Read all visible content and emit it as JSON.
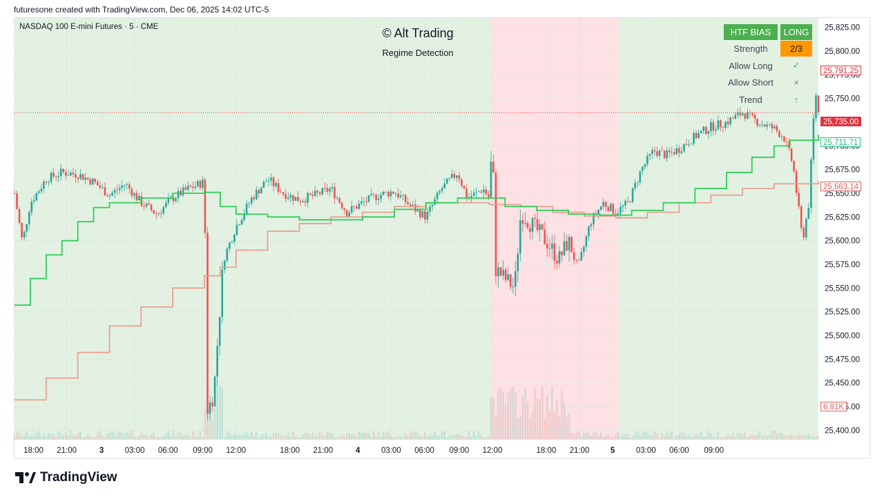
{
  "header": {
    "attribution": "futuresone created with TradingView.com, Dec 06, 2025 14:02 UTC-5"
  },
  "symbol_line": "NASDAQ 100 E-mini Futures · 5 · CME",
  "indicator": {
    "title": "© Alt Trading",
    "subtitle": "Regime Detection"
  },
  "panel": {
    "htf_bias_label": "HTF BIAS",
    "htf_bias_value": "LONG",
    "strength_label": "Strength",
    "strength_value": "2/3",
    "allow_long_label": "Allow Long",
    "allow_long_mark": "✓",
    "allow_short_label": "Allow Short",
    "allow_short_mark": "×",
    "trend_label": "Trend",
    "trend_mark": "↑"
  },
  "price_tags": {
    "high": "25,791.25",
    "last": "25,735.00",
    "green_line": "25,711.71",
    "salmon_line": "25,663.14",
    "volume": "6.81K"
  },
  "colors": {
    "bull_regime_bg": "#e3f1e3",
    "bear_regime_bg": "#fde1e4",
    "up_candle": "#26a69a",
    "down_candle": "#ef5350",
    "fast_line": "#2ecc55",
    "slow_line": "#e8a090",
    "last_price": "#e0323c"
  },
  "chart_data": {
    "type": "candlestick",
    "instrument": "NASDAQ 100 E-mini Futures",
    "interval": "5",
    "exchange": "CME",
    "y_ticks": [
      "25,825.00",
      "25,800.00",
      "25,775.00",
      "25,750.00",
      "25,725.00",
      "25,700.00",
      "25,675.00",
      "25,650.00",
      "25,625.00",
      "25,600.00",
      "25,575.00",
      "25,550.00",
      "25,525.00",
      "25,500.00",
      "25,475.00",
      "25,450.00",
      "25,425.00",
      "25,400.00"
    ],
    "x_ticks": [
      "18:00",
      "21:00",
      "3",
      "03:00",
      "06:00",
      "09:00",
      "12:00",
      "18:00",
      "21:00",
      "4",
      "03:00",
      "06:00",
      "09:00",
      "12:00",
      "18:00",
      "21:00",
      "5",
      "03:00",
      "06:00",
      "09:00"
    ],
    "ylim": [
      25390,
      25835
    ],
    "last_price": 25735.0,
    "regimes": [
      {
        "regime": "bull",
        "from": "Dec 2 15:00",
        "to": "Dec 4 09:40"
      },
      {
        "regime": "bear",
        "from": "Dec 4 09:40",
        "to": "Dec 4 21:00"
      },
      {
        "regime": "bull",
        "from": "Dec 4 21:00",
        "to": "Dec 5 10:00"
      }
    ],
    "close_path": [
      {
        "t": 0,
        "v": 25650
      },
      {
        "t": 0.25,
        "v": 25598
      },
      {
        "t": 0.5,
        "v": 25640
      },
      {
        "t": 1,
        "v": 25665
      },
      {
        "t": 1.5,
        "v": 25672
      },
      {
        "t": 2,
        "v": 25670
      },
      {
        "t": 2.5,
        "v": 25662
      },
      {
        "t": 3,
        "v": 25648
      },
      {
        "t": 3.5,
        "v": 25660
      },
      {
        "t": 4,
        "v": 25640
      },
      {
        "t": 4.5,
        "v": 25628
      },
      {
        "t": 5,
        "v": 25645
      },
      {
        "t": 5.5,
        "v": 25655
      },
      {
        "t": 6,
        "v": 25662
      },
      {
        "t": 6.1,
        "v": 25420
      },
      {
        "t": 6.3,
        "v": 25440
      },
      {
        "t": 6.6,
        "v": 25580
      },
      {
        "t": 7,
        "v": 25615
      },
      {
        "t": 7.5,
        "v": 25645
      },
      {
        "t": 8,
        "v": 25665
      },
      {
        "t": 8.5,
        "v": 25650
      },
      {
        "t": 9,
        "v": 25643
      },
      {
        "t": 9.5,
        "v": 25648
      },
      {
        "t": 10,
        "v": 25655
      },
      {
        "t": 10.5,
        "v": 25630
      },
      {
        "t": 11,
        "v": 25640
      },
      {
        "t": 11.5,
        "v": 25648
      },
      {
        "t": 12,
        "v": 25652
      },
      {
        "t": 12.5,
        "v": 25637
      },
      {
        "t": 13,
        "v": 25625
      },
      {
        "t": 13.5,
        "v": 25655
      },
      {
        "t": 14,
        "v": 25672
      },
      {
        "t": 14.3,
        "v": 25645
      },
      {
        "t": 14.6,
        "v": 25650
      },
      {
        "t": 14.8,
        "v": 25655
      },
      {
        "t": 15,
        "v": 25645
      },
      {
        "t": 15.1,
        "v": 25710
      },
      {
        "t": 15.2,
        "v": 25570
      },
      {
        "t": 15.5,
        "v": 25560
      },
      {
        "t": 15.8,
        "v": 25550
      },
      {
        "t": 16,
        "v": 25630
      },
      {
        "t": 16.4,
        "v": 25615
      },
      {
        "t": 16.8,
        "v": 25600
      },
      {
        "t": 17.2,
        "v": 25580
      },
      {
        "t": 17.5,
        "v": 25600
      },
      {
        "t": 17.8,
        "v": 25570
      },
      {
        "t": 18.2,
        "v": 25620
      },
      {
        "t": 18.6,
        "v": 25640
      },
      {
        "t": 19,
        "v": 25630
      },
      {
        "t": 19.4,
        "v": 25640
      },
      {
        "t": 19.8,
        "v": 25675
      },
      {
        "t": 20.2,
        "v": 25695
      },
      {
        "t": 20.6,
        "v": 25690
      },
      {
        "t": 21,
        "v": 25697
      },
      {
        "t": 21.5,
        "v": 25710
      },
      {
        "t": 22,
        "v": 25720
      },
      {
        "t": 22.5,
        "v": 25725
      },
      {
        "t": 23,
        "v": 25735
      },
      {
        "t": 23.5,
        "v": 25725
      },
      {
        "t": 24,
        "v": 25718
      },
      {
        "t": 24.3,
        "v": 25710
      },
      {
        "t": 24.6,
        "v": 25680
      },
      {
        "t": 24.9,
        "v": 25600
      },
      {
        "t": 25.1,
        "v": 25640
      },
      {
        "t": 25.3,
        "v": 25760
      },
      {
        "t": 25.4,
        "v": 25735
      }
    ],
    "fast_line": [
      {
        "t": 0,
        "v": 25532
      },
      {
        "t": 0.5,
        "v": 25560
      },
      {
        "t": 1,
        "v": 25585
      },
      {
        "t": 1.5,
        "v": 25600
      },
      {
        "t": 2,
        "v": 25620
      },
      {
        "t": 2.5,
        "v": 25635
      },
      {
        "t": 3,
        "v": 25640
      },
      {
        "t": 4,
        "v": 25645
      },
      {
        "t": 5,
        "v": 25650
      },
      {
        "t": 6,
        "v": 25651
      },
      {
        "t": 6.5,
        "v": 25636
      },
      {
        "t": 7,
        "v": 25628
      },
      {
        "t": 8,
        "v": 25625
      },
      {
        "t": 9,
        "v": 25622
      },
      {
        "t": 10,
        "v": 25622
      },
      {
        "t": 11,
        "v": 25625
      },
      {
        "t": 12,
        "v": 25633
      },
      {
        "t": 13,
        "v": 25640
      },
      {
        "t": 14,
        "v": 25645
      },
      {
        "t": 15,
        "v": 25645
      },
      {
        "t": 15.5,
        "v": 25636
      },
      {
        "t": 16.5,
        "v": 25632
      },
      {
        "t": 17.5,
        "v": 25628
      },
      {
        "t": 18.5,
        "v": 25627
      },
      {
        "t": 19.5,
        "v": 25632
      },
      {
        "t": 20.5,
        "v": 25640
      },
      {
        "t": 21.5,
        "v": 25655
      },
      {
        "t": 22.5,
        "v": 25672
      },
      {
        "t": 23.3,
        "v": 25688
      },
      {
        "t": 24,
        "v": 25700
      },
      {
        "t": 24.5,
        "v": 25706
      },
      {
        "t": 25.4,
        "v": 25711.71
      }
    ],
    "slow_line": [
      {
        "t": 0,
        "v": 25432
      },
      {
        "t": 1,
        "v": 25455
      },
      {
        "t": 2,
        "v": 25482
      },
      {
        "t": 3,
        "v": 25510
      },
      {
        "t": 4,
        "v": 25530
      },
      {
        "t": 5,
        "v": 25550
      },
      {
        "t": 6,
        "v": 25563
      },
      {
        "t": 6.5,
        "v": 25572
      },
      {
        "t": 7,
        "v": 25590
      },
      {
        "t": 8,
        "v": 25610
      },
      {
        "t": 9,
        "v": 25618
      },
      {
        "t": 10,
        "v": 25625
      },
      {
        "t": 11,
        "v": 25630
      },
      {
        "t": 12,
        "v": 25636
      },
      {
        "t": 13,
        "v": 25640
      },
      {
        "t": 14,
        "v": 25640
      },
      {
        "t": 15,
        "v": 25638
      },
      {
        "t": 16,
        "v": 25636
      },
      {
        "t": 17,
        "v": 25630
      },
      {
        "t": 18,
        "v": 25626
      },
      {
        "t": 19,
        "v": 25624
      },
      {
        "t": 20,
        "v": 25630
      },
      {
        "t": 21,
        "v": 25640
      },
      {
        "t": 22,
        "v": 25648
      },
      {
        "t": 23,
        "v": 25655
      },
      {
        "t": 24,
        "v": 25660
      },
      {
        "t": 25.4,
        "v": 25663.14
      }
    ]
  }
}
